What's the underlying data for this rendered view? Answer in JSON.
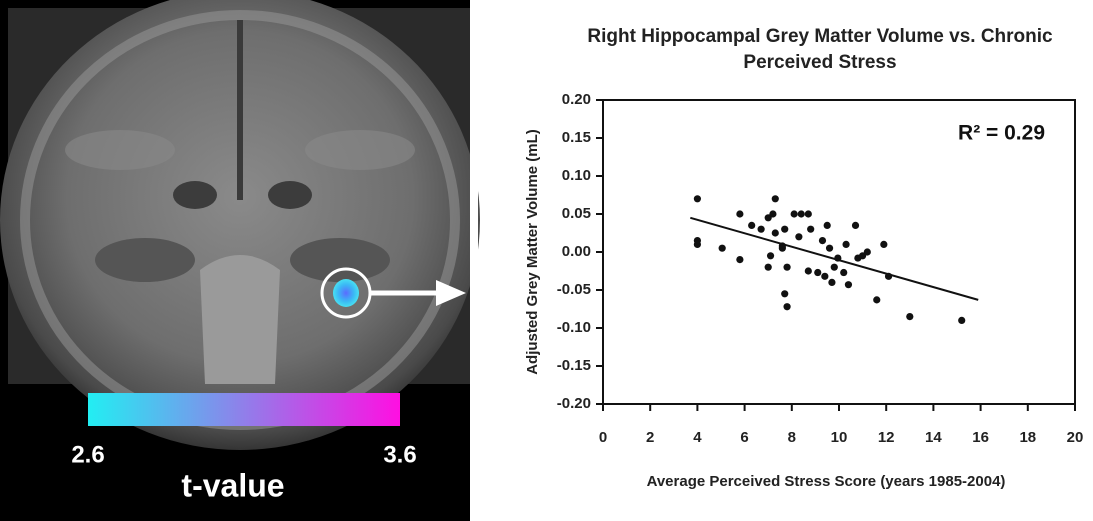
{
  "chart_data": [
    {
      "type": "scatter",
      "title": "Right Hippocampal Grey Matter Volume vs. Chronic Perceived Stress",
      "x_label": "Average Perceived Stress Score (years 1985-2004)",
      "y_label": "Adjusted Grey Matter Volume (mL)",
      "annotation": "R² = 0.29",
      "color": "#111111",
      "xlim": [
        0,
        20
      ],
      "ylim": [
        -0.2,
        0.2
      ],
      "xticks": [
        0,
        2,
        4,
        6,
        8,
        10,
        12,
        14,
        16,
        18,
        20
      ],
      "yticks": [
        {
          "value": 0.2,
          "label": "0.20"
        },
        0.15,
        {
          "value": 0.1,
          "label": "0.10"
        },
        0.05,
        {
          "value": 0,
          "label": "0.00"
        },
        -0.05,
        {
          "value": -0.1,
          "label": "-0.10"
        },
        -0.15,
        {
          "value": -0.2,
          "label": "-0.20"
        }
      ],
      "x": [
        4.0,
        4.0,
        4.0,
        5.05,
        5.8,
        5.8,
        6.3,
        6.7,
        7.0,
        7.2,
        7.1,
        7.0,
        7.3,
        7.3,
        7.6,
        7.7,
        7.6,
        7.8,
        7.7,
        7.8,
        8.1,
        8.4,
        8.7,
        8.3,
        8.8,
        8.7,
        9.1,
        9.3,
        9.5,
        9.4,
        9.6,
        9.8,
        9.7,
        9.95,
        10.2,
        10.3,
        10.4,
        10.7,
        10.8,
        11.0,
        11.2,
        11.6,
        11.9,
        12.1,
        13.0,
        15.2
      ],
      "values": [
        0.07,
        0.015,
        0.01,
        0.005,
        0.05,
        -0.01,
        0.035,
        0.03,
        0.045,
        0.05,
        -0.005,
        -0.02,
        0.07,
        0.025,
        0.008,
        0.03,
        0.005,
        -0.02,
        -0.055,
        -0.072,
        0.05,
        0.05,
        0.05,
        0.02,
        0.03,
        -0.025,
        -0.027,
        0.015,
        0.035,
        -0.032,
        0.005,
        -0.02,
        -0.04,
        -0.008,
        -0.027,
        0.01,
        -0.043,
        0.035,
        -0.008,
        -0.005,
        0.0,
        -0.063,
        0.01,
        -0.032,
        -0.085,
        -0.09
      ],
      "fit_line": {
        "x": [
          3.7,
          15.9
        ],
        "values": [
          0.045,
          -0.063
        ]
      }
    },
    {
      "type": "colorbar",
      "label": "t-value",
      "clim": [
        2.6,
        3.6
      ],
      "ticks": [
        2.6,
        3.6
      ],
      "colors": [
        "#22eef2",
        "#ff0fe2"
      ]
    }
  ]
}
